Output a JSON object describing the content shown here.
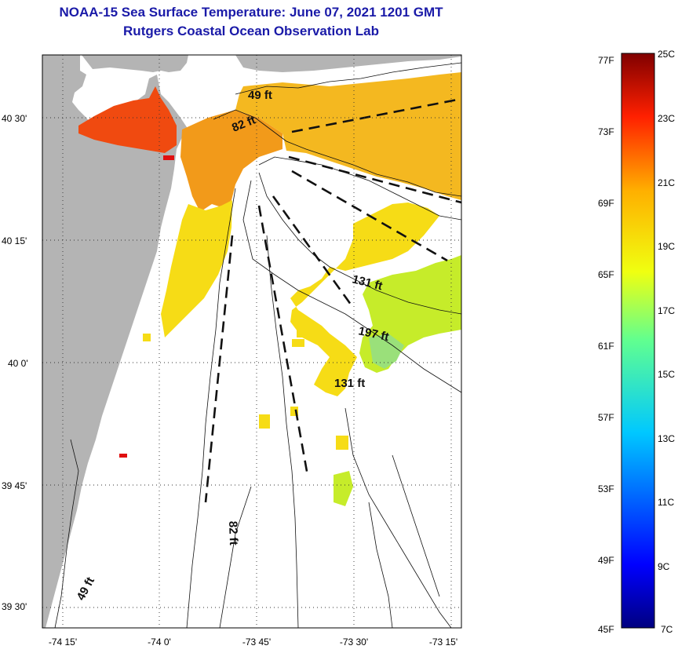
{
  "title": {
    "line1": "NOAA-15 Sea Surface Temperature:  June 07, 2021 1201 GMT",
    "line2": "Rutgers Coastal Ocean Observation Lab"
  },
  "map": {
    "lat_labels": [
      "40 30'",
      "40 15'",
      "40 0'",
      "39 45'",
      "39 30'"
    ],
    "lon_labels": [
      "-74 15'",
      "-74 0'",
      "-73 45'",
      "-73 30'",
      "-73 15'"
    ],
    "depth_labels": [
      "49 ft",
      "82 ft",
      "131 ft",
      "197 ft",
      "131 ft",
      "82 ft",
      "49 ft"
    ],
    "colors": {
      "land": "#b4b4b4",
      "warm": "#f04a10",
      "orange": "#f29a1a",
      "yellow": "#f5e012",
      "lime": "#c6ec2a"
    }
  },
  "colorbar": {
    "fahrenheit": [
      "77F",
      "73F",
      "69F",
      "65F",
      "61F",
      "57F",
      "53F",
      "49F",
      "45F"
    ],
    "celsius": [
      "25C",
      "23C",
      "21C",
      "19C",
      "17C",
      "15C",
      "13C",
      "11C",
      "9C",
      "7C"
    ]
  }
}
